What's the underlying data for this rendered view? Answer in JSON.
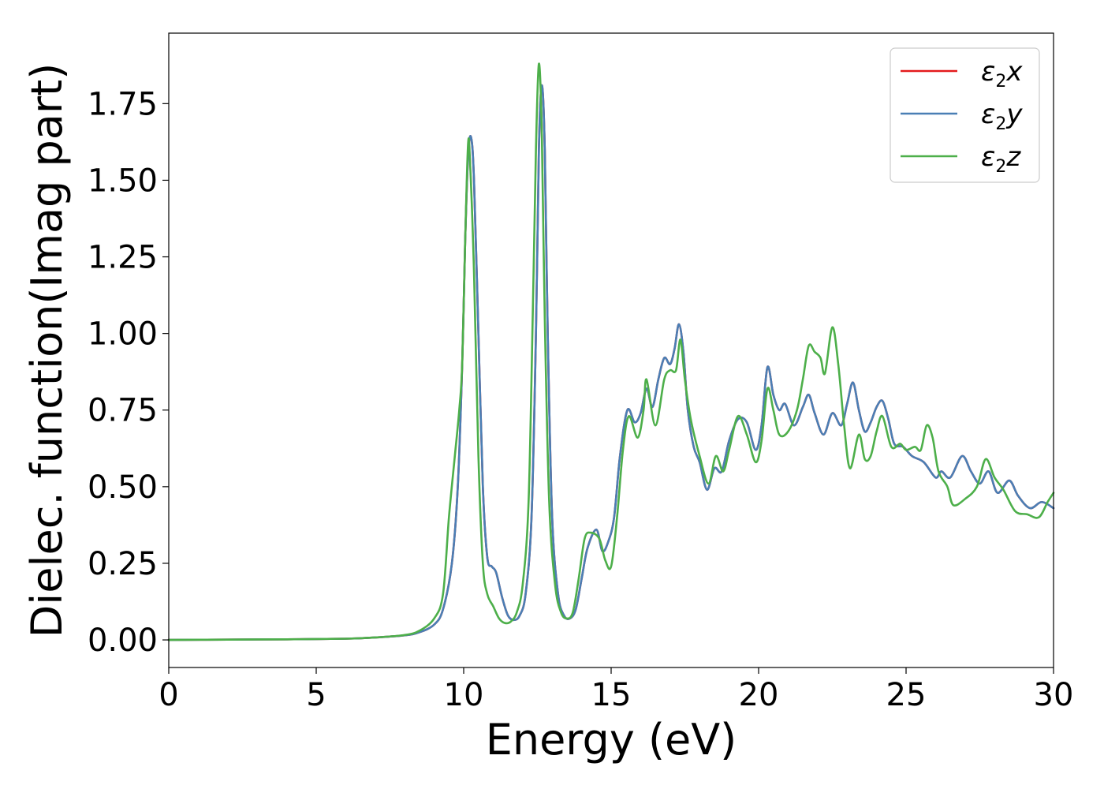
{
  "chart_data": {
    "type": "line",
    "title": "",
    "xlabel": "Energy (eV)",
    "ylabel": "Dielec. function(Imag part)",
    "xlim": [
      0,
      30
    ],
    "ylim": [
      -0.09,
      1.98
    ],
    "xticks": [
      0,
      5,
      10,
      15,
      20,
      25,
      30
    ],
    "xtick_labels": [
      "0",
      "5",
      "10",
      "15",
      "20",
      "25",
      "30"
    ],
    "yticks": [
      0.0,
      0.25,
      0.5,
      0.75,
      1.0,
      1.25,
      1.5,
      1.75
    ],
    "ytick_labels": [
      "0.00",
      "0.25",
      "0.50",
      "0.75",
      "1.00",
      "1.25",
      "1.50",
      "1.75"
    ],
    "grid": false,
    "legend_position": "top-right",
    "series": [
      {
        "name": "ε₂x",
        "base": "ε",
        "sub": "2",
        "var": "x",
        "color": "#e41a1c",
        "points": [
          [
            0,
            0.0
          ],
          [
            2,
            0.001
          ],
          [
            4,
            0.002
          ],
          [
            6,
            0.004
          ],
          [
            7,
            0.008
          ],
          [
            8,
            0.015
          ],
          [
            8.5,
            0.025
          ],
          [
            9,
            0.05
          ],
          [
            9.3,
            0.1
          ],
          [
            9.6,
            0.25
          ],
          [
            9.8,
            0.5
          ],
          [
            9.95,
            0.9
          ],
          [
            10.05,
            1.3
          ],
          [
            10.15,
            1.58
          ],
          [
            10.25,
            1.64
          ],
          [
            10.35,
            1.5
          ],
          [
            10.5,
            1.0
          ],
          [
            10.65,
            0.5
          ],
          [
            10.8,
            0.27
          ],
          [
            10.95,
            0.24
          ],
          [
            11.1,
            0.22
          ],
          [
            11.3,
            0.14
          ],
          [
            11.5,
            0.08
          ],
          [
            11.7,
            0.065
          ],
          [
            11.9,
            0.08
          ],
          [
            12.1,
            0.15
          ],
          [
            12.3,
            0.4
          ],
          [
            12.45,
            1.0
          ],
          [
            12.55,
            1.6
          ],
          [
            12.65,
            1.81
          ],
          [
            12.75,
            1.6
          ],
          [
            12.85,
            1.0
          ],
          [
            13.0,
            0.4
          ],
          [
            13.2,
            0.15
          ],
          [
            13.4,
            0.08
          ],
          [
            13.6,
            0.07
          ],
          [
            13.8,
            0.1
          ],
          [
            14.0,
            0.2
          ],
          [
            14.2,
            0.3
          ],
          [
            14.5,
            0.36
          ],
          [
            14.7,
            0.29
          ],
          [
            14.9,
            0.32
          ],
          [
            15.1,
            0.4
          ],
          [
            15.3,
            0.6
          ],
          [
            15.55,
            0.75
          ],
          [
            15.8,
            0.71
          ],
          [
            16.0,
            0.74
          ],
          [
            16.2,
            0.82
          ],
          [
            16.4,
            0.76
          ],
          [
            16.6,
            0.85
          ],
          [
            16.8,
            0.92
          ],
          [
            17.0,
            0.9
          ],
          [
            17.15,
            0.95
          ],
          [
            17.3,
            1.03
          ],
          [
            17.45,
            0.94
          ],
          [
            17.6,
            0.75
          ],
          [
            17.8,
            0.63
          ],
          [
            18.0,
            0.58
          ],
          [
            18.25,
            0.49
          ],
          [
            18.5,
            0.56
          ],
          [
            18.75,
            0.55
          ],
          [
            19.0,
            0.65
          ],
          [
            19.3,
            0.72
          ],
          [
            19.6,
            0.71
          ],
          [
            19.9,
            0.62
          ],
          [
            20.1,
            0.7
          ],
          [
            20.3,
            0.89
          ],
          [
            20.5,
            0.8
          ],
          [
            20.7,
            0.75
          ],
          [
            20.9,
            0.77
          ],
          [
            21.2,
            0.7
          ],
          [
            21.5,
            0.76
          ],
          [
            21.7,
            0.8
          ],
          [
            21.9,
            0.74
          ],
          [
            22.2,
            0.67
          ],
          [
            22.5,
            0.74
          ],
          [
            22.8,
            0.7
          ],
          [
            23.0,
            0.77
          ],
          [
            23.2,
            0.84
          ],
          [
            23.4,
            0.75
          ],
          [
            23.6,
            0.68
          ],
          [
            23.8,
            0.71
          ],
          [
            24.0,
            0.76
          ],
          [
            24.2,
            0.78
          ],
          [
            24.4,
            0.72
          ],
          [
            24.6,
            0.64
          ],
          [
            24.9,
            0.63
          ],
          [
            25.2,
            0.6
          ],
          [
            25.6,
            0.58
          ],
          [
            26.0,
            0.53
          ],
          [
            26.2,
            0.55
          ],
          [
            26.5,
            0.53
          ],
          [
            26.9,
            0.6
          ],
          [
            27.2,
            0.55
          ],
          [
            27.5,
            0.51
          ],
          [
            27.8,
            0.55
          ],
          [
            28.1,
            0.48
          ],
          [
            28.5,
            0.52
          ],
          [
            28.8,
            0.47
          ],
          [
            29.2,
            0.43
          ],
          [
            29.6,
            0.45
          ],
          [
            30.0,
            0.43
          ]
        ]
      },
      {
        "name": "ε₂y",
        "base": "ε",
        "sub": "2",
        "var": "y",
        "color": "#4a7fb5",
        "points": [
          [
            0,
            0.0
          ],
          [
            2,
            0.001
          ],
          [
            4,
            0.002
          ],
          [
            6,
            0.004
          ],
          [
            7,
            0.008
          ],
          [
            8,
            0.015
          ],
          [
            8.5,
            0.025
          ],
          [
            9,
            0.05
          ],
          [
            9.3,
            0.1
          ],
          [
            9.6,
            0.25
          ],
          [
            9.8,
            0.5
          ],
          [
            9.95,
            0.9
          ],
          [
            10.05,
            1.3
          ],
          [
            10.15,
            1.58
          ],
          [
            10.25,
            1.64
          ],
          [
            10.35,
            1.5
          ],
          [
            10.5,
            1.0
          ],
          [
            10.65,
            0.5
          ],
          [
            10.8,
            0.27
          ],
          [
            10.95,
            0.24
          ],
          [
            11.1,
            0.22
          ],
          [
            11.3,
            0.14
          ],
          [
            11.5,
            0.08
          ],
          [
            11.7,
            0.065
          ],
          [
            11.9,
            0.08
          ],
          [
            12.1,
            0.15
          ],
          [
            12.3,
            0.4
          ],
          [
            12.45,
            1.0
          ],
          [
            12.55,
            1.6
          ],
          [
            12.65,
            1.81
          ],
          [
            12.75,
            1.6
          ],
          [
            12.85,
            1.0
          ],
          [
            13.0,
            0.4
          ],
          [
            13.2,
            0.15
          ],
          [
            13.4,
            0.08
          ],
          [
            13.6,
            0.07
          ],
          [
            13.8,
            0.1
          ],
          [
            14.0,
            0.2
          ],
          [
            14.2,
            0.3
          ],
          [
            14.5,
            0.36
          ],
          [
            14.7,
            0.29
          ],
          [
            14.9,
            0.32
          ],
          [
            15.1,
            0.4
          ],
          [
            15.3,
            0.6
          ],
          [
            15.55,
            0.75
          ],
          [
            15.8,
            0.71
          ],
          [
            16.0,
            0.74
          ],
          [
            16.2,
            0.82
          ],
          [
            16.4,
            0.76
          ],
          [
            16.6,
            0.85
          ],
          [
            16.8,
            0.92
          ],
          [
            17.0,
            0.9
          ],
          [
            17.15,
            0.95
          ],
          [
            17.3,
            1.03
          ],
          [
            17.45,
            0.94
          ],
          [
            17.6,
            0.75
          ],
          [
            17.8,
            0.63
          ],
          [
            18.0,
            0.58
          ],
          [
            18.25,
            0.49
          ],
          [
            18.5,
            0.56
          ],
          [
            18.75,
            0.55
          ],
          [
            19.0,
            0.65
          ],
          [
            19.3,
            0.72
          ],
          [
            19.6,
            0.71
          ],
          [
            19.9,
            0.62
          ],
          [
            20.1,
            0.7
          ],
          [
            20.3,
            0.89
          ],
          [
            20.5,
            0.8
          ],
          [
            20.7,
            0.75
          ],
          [
            20.9,
            0.77
          ],
          [
            21.2,
            0.7
          ],
          [
            21.5,
            0.76
          ],
          [
            21.7,
            0.8
          ],
          [
            21.9,
            0.74
          ],
          [
            22.2,
            0.67
          ],
          [
            22.5,
            0.74
          ],
          [
            22.8,
            0.7
          ],
          [
            23.0,
            0.77
          ],
          [
            23.2,
            0.84
          ],
          [
            23.4,
            0.75
          ],
          [
            23.6,
            0.68
          ],
          [
            23.8,
            0.71
          ],
          [
            24.0,
            0.76
          ],
          [
            24.2,
            0.78
          ],
          [
            24.4,
            0.72
          ],
          [
            24.6,
            0.64
          ],
          [
            24.9,
            0.63
          ],
          [
            25.2,
            0.6
          ],
          [
            25.6,
            0.58
          ],
          [
            26.0,
            0.53
          ],
          [
            26.2,
            0.55
          ],
          [
            26.5,
            0.53
          ],
          [
            26.9,
            0.6
          ],
          [
            27.2,
            0.55
          ],
          [
            27.5,
            0.51
          ],
          [
            27.8,
            0.55
          ],
          [
            28.1,
            0.48
          ],
          [
            28.5,
            0.52
          ],
          [
            28.8,
            0.47
          ],
          [
            29.2,
            0.43
          ],
          [
            29.6,
            0.45
          ],
          [
            30.0,
            0.43
          ]
        ]
      },
      {
        "name": "ε₂z",
        "base": "ε",
        "sub": "2",
        "var": "z",
        "color": "#4daf4a",
        "points": [
          [
            0,
            0.0
          ],
          [
            2,
            0.001
          ],
          [
            4,
            0.002
          ],
          [
            6,
            0.004
          ],
          [
            7,
            0.008
          ],
          [
            8,
            0.016
          ],
          [
            8.5,
            0.03
          ],
          [
            9,
            0.07
          ],
          [
            9.3,
            0.15
          ],
          [
            9.5,
            0.4
          ],
          [
            9.7,
            0.6
          ],
          [
            9.85,
            0.75
          ],
          [
            9.95,
            0.9
          ],
          [
            10.05,
            1.3
          ],
          [
            10.15,
            1.62
          ],
          [
            10.22,
            1.55
          ],
          [
            10.35,
            1.2
          ],
          [
            10.5,
            0.6
          ],
          [
            10.65,
            0.25
          ],
          [
            10.8,
            0.15
          ],
          [
            11.0,
            0.11
          ],
          [
            11.2,
            0.07
          ],
          [
            11.4,
            0.055
          ],
          [
            11.6,
            0.06
          ],
          [
            11.8,
            0.09
          ],
          [
            12.0,
            0.18
          ],
          [
            12.2,
            0.45
          ],
          [
            12.35,
            1.1
          ],
          [
            12.45,
            1.6
          ],
          [
            12.55,
            1.88
          ],
          [
            12.65,
            1.65
          ],
          [
            12.75,
            1.05
          ],
          [
            12.9,
            0.45
          ],
          [
            13.1,
            0.18
          ],
          [
            13.3,
            0.09
          ],
          [
            13.5,
            0.07
          ],
          [
            13.7,
            0.09
          ],
          [
            13.9,
            0.2
          ],
          [
            14.1,
            0.33
          ],
          [
            14.3,
            0.35
          ],
          [
            14.6,
            0.33
          ],
          [
            14.8,
            0.26
          ],
          [
            15.0,
            0.24
          ],
          [
            15.2,
            0.4
          ],
          [
            15.4,
            0.62
          ],
          [
            15.6,
            0.73
          ],
          [
            15.9,
            0.66
          ],
          [
            16.1,
            0.75
          ],
          [
            16.2,
            0.85
          ],
          [
            16.5,
            0.7
          ],
          [
            16.8,
            0.85
          ],
          [
            17.0,
            0.88
          ],
          [
            17.2,
            0.88
          ],
          [
            17.35,
            0.98
          ],
          [
            17.5,
            0.85
          ],
          [
            17.7,
            0.72
          ],
          [
            18.0,
            0.6
          ],
          [
            18.3,
            0.51
          ],
          [
            18.55,
            0.6
          ],
          [
            18.8,
            0.55
          ],
          [
            19.0,
            0.62
          ],
          [
            19.3,
            0.73
          ],
          [
            19.6,
            0.67
          ],
          [
            19.9,
            0.58
          ],
          [
            20.1,
            0.65
          ],
          [
            20.3,
            0.82
          ],
          [
            20.5,
            0.75
          ],
          [
            20.7,
            0.67
          ],
          [
            21.0,
            0.68
          ],
          [
            21.3,
            0.75
          ],
          [
            21.5,
            0.85
          ],
          [
            21.7,
            0.96
          ],
          [
            21.9,
            0.94
          ],
          [
            22.1,
            0.92
          ],
          [
            22.25,
            0.87
          ],
          [
            22.5,
            1.02
          ],
          [
            22.7,
            0.9
          ],
          [
            22.9,
            0.7
          ],
          [
            23.1,
            0.56
          ],
          [
            23.4,
            0.67
          ],
          [
            23.6,
            0.59
          ],
          [
            23.8,
            0.6
          ],
          [
            24.0,
            0.68
          ],
          [
            24.2,
            0.73
          ],
          [
            24.5,
            0.63
          ],
          [
            24.8,
            0.64
          ],
          [
            25.0,
            0.62
          ],
          [
            25.3,
            0.63
          ],
          [
            25.5,
            0.62
          ],
          [
            25.7,
            0.7
          ],
          [
            25.9,
            0.66
          ],
          [
            26.1,
            0.55
          ],
          [
            26.4,
            0.5
          ],
          [
            26.6,
            0.44
          ],
          [
            27.0,
            0.46
          ],
          [
            27.4,
            0.5
          ],
          [
            27.7,
            0.59
          ],
          [
            28.0,
            0.53
          ],
          [
            28.3,
            0.49
          ],
          [
            28.7,
            0.42
          ],
          [
            29.1,
            0.41
          ],
          [
            29.5,
            0.4
          ],
          [
            29.8,
            0.45
          ],
          [
            30.0,
            0.48
          ]
        ]
      }
    ]
  }
}
